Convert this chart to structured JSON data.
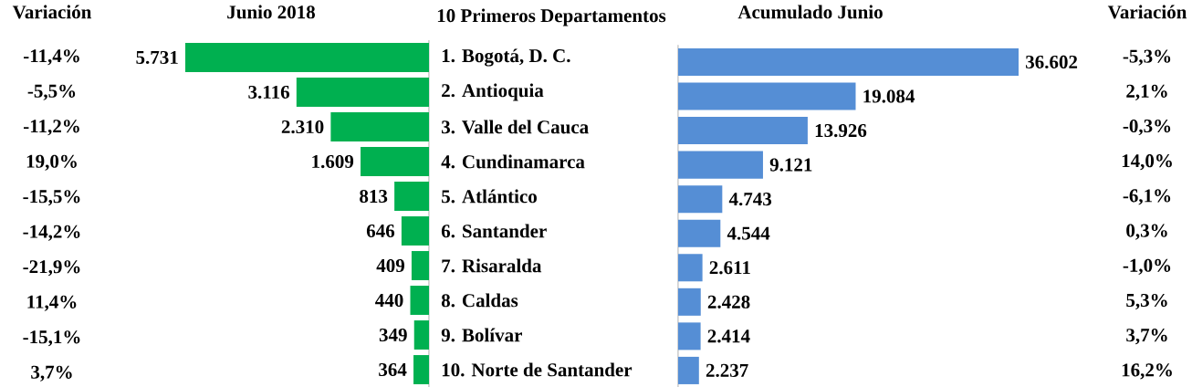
{
  "chart_data": [
    {
      "type": "other",
      "title": "Variación",
      "annotations": [
        "-11,4%",
        "-5,5%",
        "-11,2%",
        "19,0%",
        "-15,5%",
        "-14,2%",
        "-21,9%",
        "11,4%",
        "-15,1%",
        "3,7%"
      ]
    },
    {
      "type": "bar",
      "orientation": "horizontal",
      "title": "Junio 2018",
      "ylabel": "10 Primeros Departamentos",
      "categories": [
        "1. Bogotá, D. C.",
        "2. Antioquia",
        "3. Valle del Cauca",
        "4. Cundinamarca",
        "5. Atlántico",
        "6. Santander",
        "7. Risaralda",
        "8. Caldas",
        "9. Bolívar",
        "10. Norte de Santander"
      ],
      "values": [
        5731,
        3116,
        2310,
        1609,
        813,
        646,
        409,
        440,
        349,
        364
      ],
      "value_labels": [
        "5.731",
        "3.116",
        "2.310",
        "1.609",
        "813",
        "646",
        "409",
        "440",
        "349",
        "364"
      ],
      "color": "#00b050",
      "tick_labels": "y"
    },
    {
      "type": "bar",
      "orientation": "horizontal",
      "title": "Acumulado Junio",
      "categories": [
        null,
        null,
        null,
        null,
        null,
        null,
        null,
        null,
        null,
        null
      ],
      "values": [
        36602,
        19084,
        13926,
        9121,
        4743,
        4544,
        2611,
        2428,
        2414,
        2237
      ],
      "value_labels": [
        "36.602",
        "19.084",
        "13.926",
        "9.121",
        "4.743",
        "4.544",
        "2.611",
        "2.428",
        "2.414",
        "2.237"
      ],
      "color": "#558ed5"
    },
    {
      "type": "other",
      "title": "Variación",
      "annotations": [
        "-5,3%",
        "2,1%",
        "-0,3%",
        "14,0%",
        "-6,1%",
        "0,3%",
        "-1,0%",
        "5,3%",
        "3,7%",
        "16,2%"
      ]
    }
  ]
}
